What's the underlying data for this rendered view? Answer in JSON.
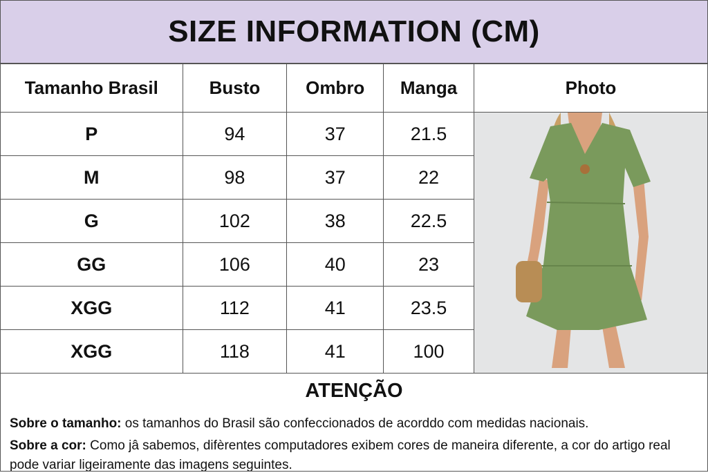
{
  "title": "SIZE INFORMATION (CM)",
  "table": {
    "headers": [
      "Tamanho Brasil",
      "Busto",
      "Ombro",
      "Manga",
      "Photo"
    ],
    "rows": [
      [
        "P",
        "94",
        "37",
        "21.5"
      ],
      [
        "M",
        "98",
        "37",
        "22"
      ],
      [
        "G",
        "102",
        "38",
        "22.5"
      ],
      [
        "GG",
        "106",
        "40",
        "23"
      ],
      [
        "XGG",
        "112",
        "41",
        "23.5"
      ],
      [
        "XGG",
        "118",
        "41",
        "100"
      ]
    ]
  },
  "photo": {
    "subject": "green-dress-model",
    "dress_color": "#7a9a5c",
    "background": "#e4e5e6"
  },
  "attention": {
    "heading": "ATENÇÃO",
    "size_label": "Sobre o tamanho:",
    "size_text": " os tamanhos do Brasil são confeccionados de acorddo com medidas nacionais.",
    "color_label": "Sobre a cor:",
    "color_text": " Como jâ sabemos, difèrentes computadores exibem cores de maneira diferente, a cor do artigo real pode variar ligeiramente das imagens seguintes."
  },
  "colors": {
    "header_band": "#d9cfe9",
    "border": "#555555"
  }
}
